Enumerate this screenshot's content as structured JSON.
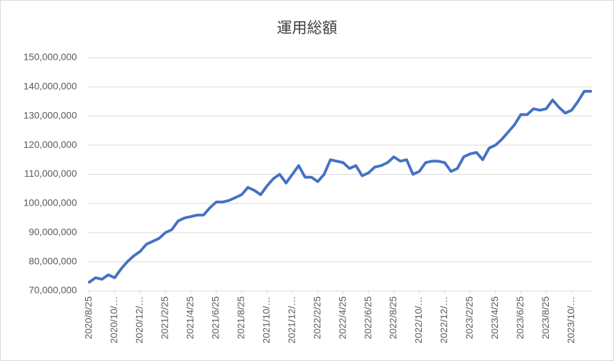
{
  "chart_data": {
    "type": "line",
    "title": "運用総額",
    "categories": [
      "2020/8/25",
      null,
      null,
      null,
      "2020/10/…",
      null,
      null,
      null,
      "2020/12/…",
      null,
      null,
      null,
      "2021/2/25",
      null,
      null,
      null,
      "2021/4/25",
      null,
      null,
      null,
      "2021/6/25",
      null,
      null,
      null,
      "2021/8/25",
      null,
      null,
      null,
      "2021/10/…",
      null,
      null,
      null,
      "2021/12/…",
      null,
      null,
      null,
      "2022/2/25",
      null,
      null,
      null,
      "2022/4/25",
      null,
      null,
      null,
      "2022/6/25",
      null,
      null,
      null,
      "2022/8/25",
      null,
      null,
      null,
      "2022/10/…",
      null,
      null,
      null,
      "2022/12/…",
      null,
      null,
      null,
      "2023/2/25",
      null,
      null,
      null,
      "2023/4/25",
      null,
      null,
      null,
      "2023/6/25",
      null,
      null,
      null,
      "2023/8/25",
      null,
      null,
      null,
      "2023/10/…",
      null,
      null,
      null
    ],
    "series": [
      {
        "name": "運用総額",
        "color": "#4472c4",
        "values": [
          73000000,
          74500000,
          74000000,
          75500000,
          74500000,
          77500000,
          80000000,
          82000000,
          83500000,
          86000000,
          87000000,
          88000000,
          90000000,
          91000000,
          94000000,
          95000000,
          95500000,
          96000000,
          96000000,
          98500000,
          100500000,
          100500000,
          101000000,
          102000000,
          103000000,
          105500000,
          104500000,
          103000000,
          106000000,
          108500000,
          110000000,
          107000000,
          110000000,
          113000000,
          109000000,
          109000000,
          107500000,
          110000000,
          115000000,
          114500000,
          114000000,
          112000000,
          113000000,
          109500000,
          110500000,
          112500000,
          113000000,
          114000000,
          116000000,
          114500000,
          115000000,
          110000000,
          111000000,
          114000000,
          114500000,
          114500000,
          114000000,
          111000000,
          112000000,
          116000000,
          117000000,
          117500000,
          115000000,
          119000000,
          120000000,
          122000000,
          124500000,
          127000000,
          130500000,
          130500000,
          132500000,
          132000000,
          132500000,
          135500000,
          133000000,
          131000000,
          132000000,
          135000000,
          138500000,
          138500000
        ]
      }
    ],
    "ylim": [
      70000000,
      150000000
    ],
    "yticks": [
      {
        "value": 70000000,
        "label": "70,000,000"
      },
      {
        "value": 80000000,
        "label": "80,000,000"
      },
      {
        "value": 90000000,
        "label": "90,000,000"
      },
      {
        "value": 100000000,
        "label": "100,000,000"
      },
      {
        "value": 110000000,
        "label": "110,000,000"
      },
      {
        "value": 120000000,
        "label": "120,000,000"
      },
      {
        "value": 130000000,
        "label": "130,000,000"
      },
      {
        "value": 140000000,
        "label": "140,000,000"
      },
      {
        "value": 150000000,
        "label": "150,000,000"
      }
    ],
    "grid": true
  }
}
